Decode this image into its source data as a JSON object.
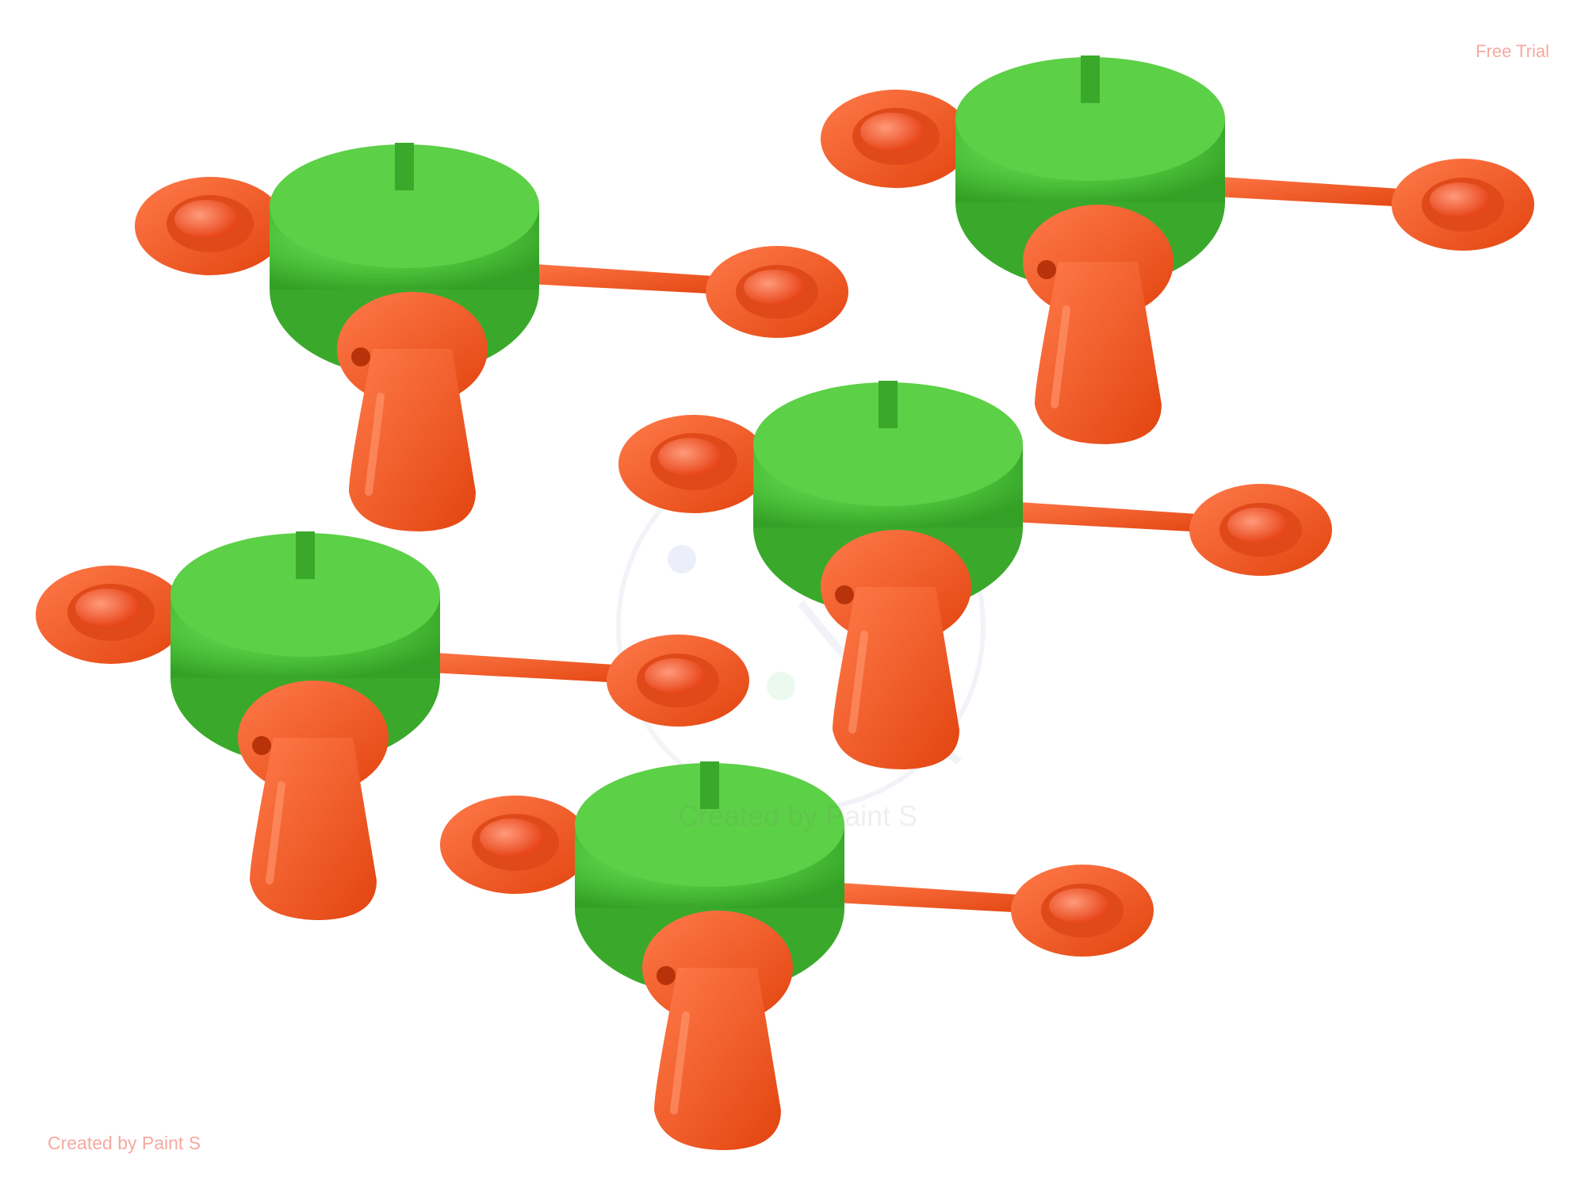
{
  "watermarks": {
    "top_right": "Free Trial",
    "bottom_left": "Created by Paint S",
    "center_logo_text": "Created by Paint S"
  },
  "colors": {
    "background": "#ffffff",
    "green_body": "#4cc23a",
    "green_highlight": "#7fe06a",
    "orange": "#f0511a",
    "orange_highlight": "#ff7a4a",
    "watermark": "#f6a9a0"
  }
}
